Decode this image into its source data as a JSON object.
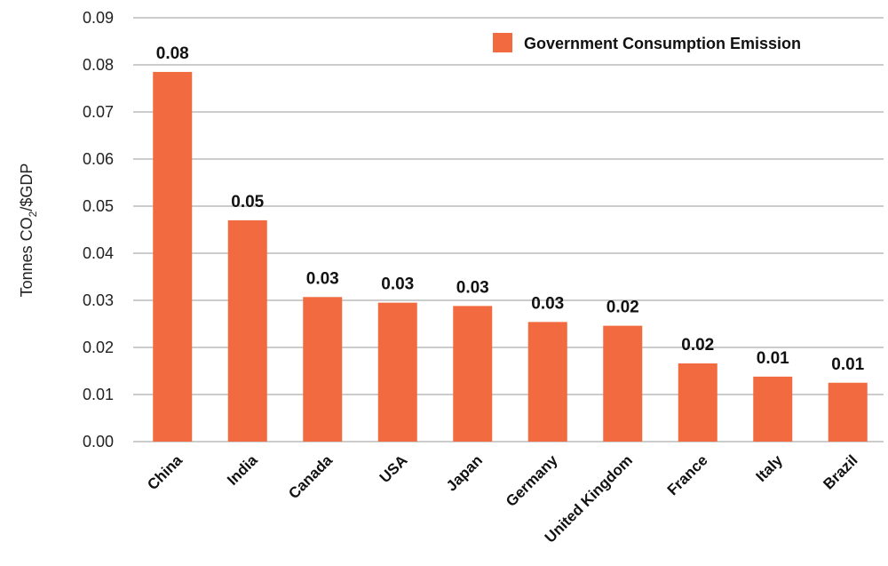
{
  "chart_data": {
    "type": "bar",
    "categories": [
      "China",
      "India",
      "Canada",
      "USA",
      "Japan",
      "Germany",
      "United Kingdom",
      "France",
      "Italy",
      "Brazil"
    ],
    "values": [
      0.0785,
      0.047,
      0.0307,
      0.0295,
      0.0288,
      0.0254,
      0.0246,
      0.0166,
      0.0138,
      0.0125
    ],
    "data_labels": [
      "0.08",
      "0.05",
      "0.03",
      "0.03",
      "0.03",
      "0.03",
      "0.02",
      "0.02",
      "0.01",
      "0.01"
    ],
    "series": [
      {
        "name": "Government Consumption Emission"
      }
    ],
    "ylabel": "Tonnes CO",
    "ylabel_sub": "2",
    "ylabel_suffix": "/$GDP",
    "ylim": [
      0,
      0.09
    ],
    "yticks": [
      "0.00",
      "0.01",
      "0.02",
      "0.03",
      "0.04",
      "0.05",
      "0.06",
      "0.07",
      "0.08",
      "0.09"
    ],
    "grid": true,
    "legend_position": "top-right",
    "bar_color": "#F26A3F",
    "grid_color": "#9a9a9a"
  }
}
